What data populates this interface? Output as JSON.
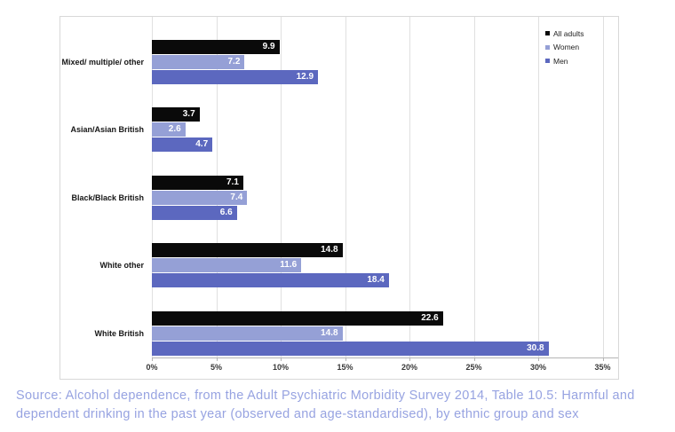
{
  "chart_data": {
    "type": "bar",
    "orientation": "horizontal",
    "title": "",
    "xlabel": "",
    "ylabel": "",
    "categories": [
      "Mixed/ multiple/ other",
      "Asian/Asian British",
      "Black/Black British",
      "White other",
      "White British"
    ],
    "series": [
      {
        "name": "All adults",
        "color": "#0a0a0a",
        "values": [
          9.9,
          3.7,
          7.1,
          14.8,
          22.6
        ]
      },
      {
        "name": "Women",
        "color": "#95A0D6",
        "values": [
          7.2,
          2.6,
          7.4,
          11.6,
          14.8
        ]
      },
      {
        "name": "Men",
        "color": "#5C68BF",
        "values": [
          12.9,
          4.7,
          6.6,
          18.4,
          30.8
        ]
      }
    ],
    "x_ticks": [
      "0%",
      "5%",
      "10%",
      "15%",
      "20%",
      "25%",
      "30%",
      "35%"
    ],
    "xlim": [
      0,
      35
    ],
    "grid": true,
    "legend_position": "top-right",
    "value_labels": true,
    "value_label_color": "#ffffff"
  },
  "source_note": {
    "line1": "Source: Alcohol dependence, from the Adult Psychiatric Morbidity Survey 2014, Table 10.5: Harmful and",
    "line2": "dependent drinking in the past year (observed and age-standardised), by ethnic group and sex",
    "color": "#97A3E1"
  }
}
